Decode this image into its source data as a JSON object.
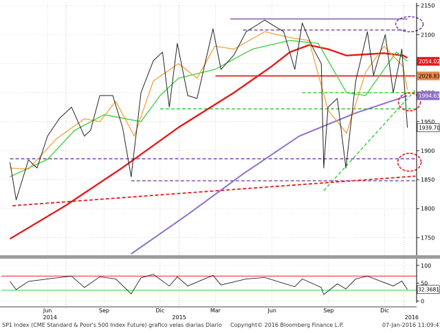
{
  "chart_data": [
    {
      "type": "line",
      "panel": "price",
      "y_ticks": [
        1750,
        1800,
        1850,
        1900,
        1950,
        2000,
        2050,
        2100,
        2150
      ],
      "ylim": [
        1722,
        2155
      ],
      "x_month_labels": [
        "Jun",
        "Sep",
        "Dic",
        "Mar",
        "Jun",
        "Sep",
        "Dic"
      ],
      "x_year_labels": [
        "2014",
        "2015",
        "2016"
      ],
      "series": [
        {
          "values": [
            {
              "x": "2014-04-01",
              "y": 1880
            },
            {
              "x": "2014-04-11",
              "y": 1815
            },
            {
              "x": "2014-05-01",
              "y": 1884
            },
            {
              "x": "2014-05-15",
              "y": 1870
            },
            {
              "x": "2014-06-01",
              "y": 1925
            },
            {
              "x": "2014-06-20",
              "y": 1955
            },
            {
              "x": "2014-07-10",
              "y": 1975
            },
            {
              "x": "2014-07-31",
              "y": 1925
            },
            {
              "x": "2014-08-10",
              "y": 1935
            },
            {
              "x": "2014-08-25",
              "y": 1995
            },
            {
              "x": "2014-09-15",
              "y": 1995
            },
            {
              "x": "2014-10-01",
              "y": 1940
            },
            {
              "x": "2014-10-15",
              "y": 1855
            },
            {
              "x": "2014-10-31",
              "y": 2000
            },
            {
              "x": "2014-11-20",
              "y": 2055
            },
            {
              "x": "2014-12-05",
              "y": 2070
            },
            {
              "x": "2014-12-16",
              "y": 1975
            },
            {
              "x": "2014-12-29",
              "y": 2085
            },
            {
              "x": "2015-01-15",
              "y": 1995
            },
            {
              "x": "2015-01-30",
              "y": 1990
            },
            {
              "x": "2015-02-25",
              "y": 2110
            },
            {
              "x": "2015-03-10",
              "y": 2040
            },
            {
              "x": "2015-03-31",
              "y": 2065
            },
            {
              "x": "2015-04-20",
              "y": 2105
            },
            {
              "x": "2015-05-20",
              "y": 2125
            },
            {
              "x": "2015-06-20",
              "y": 2105
            },
            {
              "x": "2015-07-08",
              "y": 2040
            },
            {
              "x": "2015-07-20",
              "y": 2120
            },
            {
              "x": "2015-08-05",
              "y": 2080
            },
            {
              "x": "2015-08-20",
              "y": 2050
            },
            {
              "x": "2015-08-24",
              "y": 1870
            },
            {
              "x": "2015-08-31",
              "y": 1975
            },
            {
              "x": "2015-09-15",
              "y": 1990
            },
            {
              "x": "2015-09-29",
              "y": 1870
            },
            {
              "x": "2015-10-15",
              "y": 2020
            },
            {
              "x": "2015-11-03",
              "y": 2105
            },
            {
              "x": "2015-11-13",
              "y": 2030
            },
            {
              "x": "2015-12-02",
              "y": 2100
            },
            {
              "x": "2015-12-15",
              "y": 2000
            },
            {
              "x": "2015-12-29",
              "y": 2075
            },
            {
              "x": "2016-01-07",
              "y": 1939.7
            }
          ]
        },
        {
          "values": [
            {
              "x": "2014-04-01",
              "y": 1870
            },
            {
              "x": "2014-05-01",
              "y": 1868
            },
            {
              "x": "2014-06-15",
              "y": 1920
            },
            {
              "x": "2014-07-31",
              "y": 1955
            },
            {
              "x": "2014-08-25",
              "y": 1950
            },
            {
              "x": "2014-09-20",
              "y": 1985
            },
            {
              "x": "2014-10-20",
              "y": 1925
            },
            {
              "x": "2014-11-20",
              "y": 2020
            },
            {
              "x": "2014-12-31",
              "y": 2050
            },
            {
              "x": "2015-01-30",
              "y": 2025
            },
            {
              "x": "2015-02-28",
              "y": 2080
            },
            {
              "x": "2015-03-31",
              "y": 2075
            },
            {
              "x": "2015-05-20",
              "y": 2105
            },
            {
              "x": "2015-06-30",
              "y": 2095
            },
            {
              "x": "2015-07-31",
              "y": 2090
            },
            {
              "x": "2015-08-31",
              "y": 1970
            },
            {
              "x": "2015-09-30",
              "y": 1930
            },
            {
              "x": "2015-10-31",
              "y": 2035
            },
            {
              "x": "2015-11-30",
              "y": 2080
            },
            {
              "x": "2015-12-31",
              "y": 2045
            },
            {
              "x": "2016-01-07",
              "y": 2005
            }
          ]
        },
        {
          "values": [
            {
              "x": "2014-04-01",
              "y": 1855
            },
            {
              "x": "2014-06-01",
              "y": 1885
            },
            {
              "x": "2014-07-15",
              "y": 1935
            },
            {
              "x": "2014-09-01",
              "y": 1962
            },
            {
              "x": "2014-10-31",
              "y": 1950
            },
            {
              "x": "2014-12-01",
              "y": 1995
            },
            {
              "x": "2014-12-31",
              "y": 2025
            },
            {
              "x": "2015-02-28",
              "y": 2040
            },
            {
              "x": "2015-04-30",
              "y": 2075
            },
            {
              "x": "2015-06-30",
              "y": 2090
            },
            {
              "x": "2015-08-15",
              "y": 2085
            },
            {
              "x": "2015-09-30",
              "y": 2000
            },
            {
              "x": "2015-10-31",
              "y": 1995
            },
            {
              "x": "2015-11-30",
              "y": 2040
            },
            {
              "x": "2015-12-20",
              "y": 2070
            },
            {
              "x": "2016-01-07",
              "y": 2054.02
            }
          ]
        },
        {
          "values": [
            {
              "x": "2014-04-01",
              "y": 1748
            },
            {
              "x": "2014-06-30",
              "y": 1805
            },
            {
              "x": "2014-09-30",
              "y": 1870
            },
            {
              "x": "2014-12-31",
              "y": 1940
            },
            {
              "x": "2015-03-31",
              "y": 2000
            },
            {
              "x": "2015-05-31",
              "y": 2045
            },
            {
              "x": "2015-06-30",
              "y": 2070
            },
            {
              "x": "2015-07-31",
              "y": 2082
            },
            {
              "x": "2015-08-31",
              "y": 2075
            },
            {
              "x": "2015-09-30",
              "y": 2064
            },
            {
              "x": "2015-10-31",
              "y": 2066
            },
            {
              "x": "2015-11-30",
              "y": 2068
            },
            {
              "x": "2015-12-31",
              "y": 2064
            },
            {
              "x": "2016-01-07",
              "y": 2060
            }
          ]
        },
        {
          "values": [
            {
              "x": "2014-10-15",
              "y": 1722
            },
            {
              "x": "2015-01-15",
              "y": 1790
            },
            {
              "x": "2015-04-15",
              "y": 1860
            },
            {
              "x": "2015-07-15",
              "y": 1925
            },
            {
              "x": "2015-10-15",
              "y": 1965
            },
            {
              "x": "2016-01-07",
              "y": 1994.63
            }
          ]
        }
      ],
      "reference_lines": [
        {
          "color": "#7b4bab",
          "style": "solid",
          "from": {
            "x": "2015-03-25",
            "y": 2127
          },
          "to": {
            "x": "2016-01-07",
            "y": 2127
          }
        },
        {
          "color": "#7b4bab",
          "style": "dashed",
          "from": {
            "x": "2015-04-15",
            "y": 2108
          },
          "to": {
            "x": "2016-01-07",
            "y": 2108
          }
        },
        {
          "color": "#e41a1c",
          "style": "solid",
          "from": {
            "x": "2015-03-01",
            "y": 2028.83
          },
          "to": {
            "x": "2016-01-20",
            "y": 2028.83
          }
        },
        {
          "color": "#33cc33",
          "style": "dashed",
          "from": {
            "x": "2014-12-01",
            "y": 1972
          },
          "to": {
            "x": "2016-01-20",
            "y": 1972
          }
        },
        {
          "color": "#33cc33",
          "style": "dashed",
          "from": {
            "x": "2015-07-20",
            "y": 2000
          },
          "to": {
            "x": "2016-01-20",
            "y": 2000
          }
        },
        {
          "color": "#33cc33",
          "style": "dashed",
          "from": {
            "x": "2015-08-24",
            "y": 1831
          },
          "to": {
            "x": "2016-01-20",
            "y": 2005
          }
        },
        {
          "color": "#7b4bab",
          "style": "dashed",
          "from": {
            "x": "2014-04-01",
            "y": 1886
          },
          "to": {
            "x": "2016-01-20",
            "y": 1886
          }
        },
        {
          "color": "#7b4bab",
          "style": "dashed",
          "from": {
            "x": "2014-10-15",
            "y": 1848
          },
          "to": {
            "x": "2016-01-20",
            "y": 1848
          }
        },
        {
          "color": "#e41a1c",
          "style": "dashed",
          "from": {
            "x": "2014-04-05",
            "y": 1805
          },
          "to": {
            "x": "2016-01-20",
            "y": 1856
          }
        }
      ],
      "annotation_circles": [
        {
          "color": "#7b4bab",
          "x": "2016-01-07",
          "y": 2118
        },
        {
          "color": "#e41a1c",
          "x": "2016-01-07",
          "y": 1984
        },
        {
          "color": "#e41a1c",
          "x": "2016-01-07",
          "y": 1880
        }
      ],
      "value_tags": [
        {
          "label": "2054.02",
          "value": 2054.02,
          "bg": "#e41a1c",
          "fg": "#ffffff"
        },
        {
          "label": "2028.83",
          "value": 2028.83,
          "bg": "#e8894a",
          "fg": "#000000"
        },
        {
          "label": "1994.63",
          "value": 1994.63,
          "bg": "#8f6fc8",
          "fg": "#ffffff"
        },
        {
          "label": "1939.70",
          "value": 1939.7,
          "bg": "#ffffff",
          "fg": "#000000"
        }
      ]
    },
    {
      "type": "line",
      "panel": "oscillator",
      "y_ticks": [
        0,
        50,
        100
      ],
      "ylim": [
        -5,
        115
      ],
      "series": [
        {
          "values": [
            {
              "x": "2014-04-01",
              "y": 55
            },
            {
              "x": "2014-04-11",
              "y": 32
            },
            {
              "x": "2014-05-01",
              "y": 55
            },
            {
              "x": "2014-06-01",
              "y": 62
            },
            {
              "x": "2014-07-10",
              "y": 70
            },
            {
              "x": "2014-07-31",
              "y": 38
            },
            {
              "x": "2014-08-25",
              "y": 68
            },
            {
              "x": "2014-09-20",
              "y": 62
            },
            {
              "x": "2014-10-15",
              "y": 20
            },
            {
              "x": "2014-10-31",
              "y": 65
            },
            {
              "x": "2014-11-20",
              "y": 75
            },
            {
              "x": "2014-12-16",
              "y": 42
            },
            {
              "x": "2014-12-29",
              "y": 68
            },
            {
              "x": "2015-01-15",
              "y": 42
            },
            {
              "x": "2015-02-25",
              "y": 72
            },
            {
              "x": "2015-03-10",
              "y": 45
            },
            {
              "x": "2015-04-20",
              "y": 62
            },
            {
              "x": "2015-05-20",
              "y": 66
            },
            {
              "x": "2015-07-08",
              "y": 40
            },
            {
              "x": "2015-07-20",
              "y": 62
            },
            {
              "x": "2015-08-20",
              "y": 38
            },
            {
              "x": "2015-08-24",
              "y": 18
            },
            {
              "x": "2015-09-15",
              "y": 48
            },
            {
              "x": "2015-09-29",
              "y": 34
            },
            {
              "x": "2015-10-15",
              "y": 62
            },
            {
              "x": "2015-11-03",
              "y": 70
            },
            {
              "x": "2015-12-15",
              "y": 42
            },
            {
              "x": "2015-12-29",
              "y": 56
            },
            {
              "x": "2016-01-07",
              "y": 32.3681
            }
          ]
        }
      ],
      "reference_lines": [
        {
          "color": "#e41a1c",
          "style": "solid",
          "y": 70
        },
        {
          "color": "#33cc33",
          "style": "solid",
          "y": 30
        }
      ],
      "value_tags": [
        {
          "label": "32.3681",
          "value": 32.3681,
          "bg": "#ffffff",
          "fg": "#000000"
        }
      ]
    }
  ],
  "footer": {
    "left": "SP1 Index (CME Standard & Poor's 500 Index Future) grafico velas diarias  Diario",
    "center": "Copyright© 2016 Bloomberg Finance L.P.",
    "right": "07-Jan-2016 11:09:41"
  }
}
